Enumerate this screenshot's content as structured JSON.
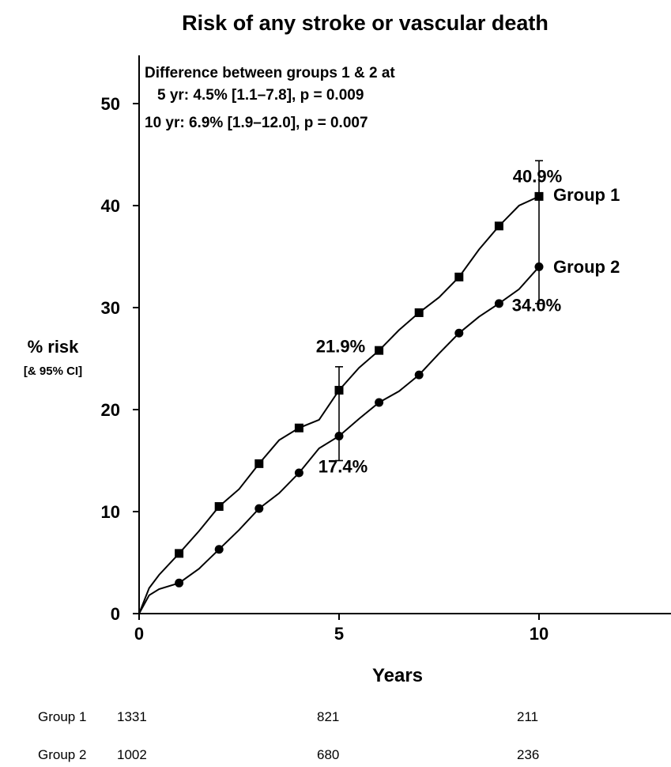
{
  "chart_data": {
    "type": "line",
    "title": "Risk of any stroke or vascular death",
    "xlabel": "Years",
    "ylabel": "% risk",
    "ylabel_sub": "[& 95% CI]",
    "xlim": [
      0,
      13.4
    ],
    "ylim": [
      0,
      55
    ],
    "xticks": [
      0,
      5,
      10
    ],
    "yticks": [
      0,
      10,
      20,
      30,
      40,
      50
    ],
    "grid": false,
    "annotation_lines": [
      "Difference between groups 1 & 2 at",
      "5 yr: 4.5% [1.1–7.8], p = 0.009",
      "10 yr: 6.9% [1.9–12.0], p = 0.007"
    ],
    "series": [
      {
        "name": "Group 1",
        "marker": "square",
        "x": [
          0,
          0.25,
          0.5,
          1,
          1.5,
          2,
          2.5,
          3,
          3.5,
          4,
          4.5,
          5,
          5.5,
          6,
          6.5,
          7,
          7.5,
          8,
          8.5,
          9,
          9.5,
          10
        ],
        "y": [
          0,
          2.5,
          3.8,
          5.9,
          8.1,
          10.5,
          12.2,
          14.7,
          17.0,
          18.2,
          19.0,
          21.9,
          24.1,
          25.8,
          27.8,
          29.5,
          31.0,
          33.0,
          35.7,
          38.0,
          40.0,
          40.9
        ],
        "markers_x": [
          1,
          2,
          3,
          4,
          5,
          6,
          7,
          8,
          9,
          10
        ],
        "markers_y": [
          5.9,
          10.5,
          14.7,
          18.2,
          21.9,
          25.8,
          29.5,
          33.0,
          38.0,
          40.9
        ]
      },
      {
        "name": "Group 2",
        "marker": "circle",
        "x": [
          0,
          0.25,
          0.5,
          1,
          1.5,
          2,
          2.5,
          3,
          3.5,
          4,
          4.5,
          5,
          5.5,
          6,
          6.5,
          7,
          7.5,
          8,
          8.5,
          9,
          9.5,
          10
        ],
        "y": [
          0,
          1.8,
          2.4,
          3.0,
          4.4,
          6.3,
          8.2,
          10.3,
          11.8,
          13.8,
          16.2,
          17.4,
          19.1,
          20.7,
          21.8,
          23.4,
          25.5,
          27.5,
          29.1,
          30.4,
          31.8,
          34.0
        ],
        "markers_x": [
          1,
          2,
          3,
          4,
          5,
          6,
          7,
          8,
          9,
          10
        ],
        "markers_y": [
          3.0,
          6.3,
          10.3,
          13.8,
          17.4,
          20.7,
          23.4,
          27.5,
          30.4,
          34.0
        ]
      }
    ],
    "error_bars": [
      {
        "x": 5,
        "low": 15.0,
        "high": 24.2
      },
      {
        "x": 10,
        "low": 30.4,
        "high": 44.4
      }
    ],
    "value_labels": [
      {
        "text": "40.9%",
        "x": 10,
        "y": 40.9
      },
      {
        "text": "21.9%",
        "x": 5,
        "y": 21.9
      },
      {
        "text": "17.4%",
        "x": 5,
        "y": 17.4
      },
      {
        "text": "34.0%",
        "x": 10,
        "y": 34.0
      }
    ],
    "risk_table": {
      "rows": [
        {
          "label": "Group 1",
          "values": [
            {
              "x": 0,
              "n": "1331"
            },
            {
              "x": 5,
              "n": "821"
            },
            {
              "x": 10,
              "n": "211"
            }
          ]
        },
        {
          "label": "Group 2",
          "values": [
            {
              "x": 0,
              "n": "1002"
            },
            {
              "x": 5,
              "n": "680"
            },
            {
              "x": 10,
              "n": "236"
            }
          ]
        }
      ]
    }
  }
}
